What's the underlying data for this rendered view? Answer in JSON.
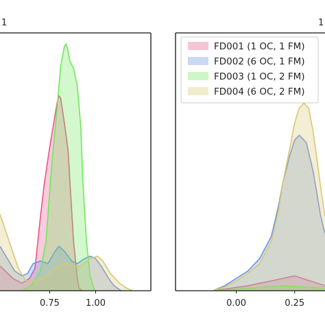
{
  "panel_labels": {
    "left": "1",
    "right": "1"
  },
  "chart_data": [
    {
      "type": "area",
      "xlim": [
        0.48,
        1.3
      ],
      "ylim": [
        0,
        1
      ],
      "x_ticks": [
        0.75,
        1.0
      ],
      "x_tick_labels": [
        "0.75",
        "1.00"
      ],
      "grid": false,
      "legend": null,
      "series": [
        {
          "color": "#e8558a",
          "x": [
            0.48,
            0.55,
            0.6,
            0.64,
            0.67,
            0.7,
            0.72,
            0.75,
            0.77,
            0.79,
            0.8,
            0.81,
            0.83,
            0.85,
            0.86,
            0.88,
            0.9,
            0.91,
            0.93
          ],
          "y": [
            0.1,
            0.05,
            0.03,
            0.05,
            0.09,
            0.3,
            0.43,
            0.58,
            0.67,
            0.76,
            0.79,
            0.78,
            0.68,
            0.57,
            0.44,
            0.2,
            0.05,
            0.01,
            0.0
          ]
        },
        {
          "color": "#6d93e3",
          "x": [
            0.48,
            0.52,
            0.56,
            0.6,
            0.63,
            0.66,
            0.7,
            0.74,
            0.78,
            0.8,
            0.83,
            0.87,
            0.9,
            0.94,
            0.97,
            1.0,
            1.03,
            1.07,
            1.1,
            1.14
          ],
          "y": [
            0.18,
            0.13,
            0.08,
            0.06,
            0.07,
            0.11,
            0.12,
            0.11,
            0.16,
            0.18,
            0.16,
            0.12,
            0.11,
            0.13,
            0.14,
            0.13,
            0.1,
            0.05,
            0.02,
            0.0
          ]
        },
        {
          "color": "#6ee85a",
          "x": [
            0.6,
            0.65,
            0.7,
            0.73,
            0.76,
            0.79,
            0.81,
            0.83,
            0.84,
            0.85,
            0.86,
            0.88,
            0.9,
            0.92,
            0.93,
            0.95,
            0.97,
            0.99,
            1.0
          ],
          "y": [
            0.0,
            0.02,
            0.08,
            0.2,
            0.5,
            0.74,
            0.91,
            0.99,
            1.0,
            0.97,
            0.93,
            0.9,
            0.83,
            0.66,
            0.45,
            0.2,
            0.06,
            0.01,
            0.0
          ]
        },
        {
          "color": "#d8c870",
          "x": [
            0.48,
            0.53,
            0.58,
            0.62,
            0.67,
            0.72,
            0.76,
            0.8,
            0.84,
            0.88,
            0.92,
            0.97,
            1.01,
            1.04,
            1.08,
            1.13,
            1.17,
            1.2
          ],
          "y": [
            0.31,
            0.2,
            0.09,
            0.04,
            0.04,
            0.05,
            0.08,
            0.1,
            0.11,
            0.1,
            0.1,
            0.13,
            0.14,
            0.12,
            0.07,
            0.03,
            0.01,
            0.0
          ]
        }
      ]
    },
    {
      "type": "area",
      "xlim": [
        -0.26,
        0.38
      ],
      "ylim": [
        0,
        1
      ],
      "x_ticks": [
        0.0,
        0.25
      ],
      "x_tick_labels": [
        "0.00",
        "0.25"
      ],
      "grid": false,
      "legend": "top-right",
      "series": [
        {
          "name": "FD001 (1 OC, 1 FM)",
          "color": "#e8558a",
          "x": [
            -0.1,
            0.05,
            0.15,
            0.25,
            0.38
          ],
          "y": [
            0.0,
            0.02,
            0.04,
            0.06,
            0.02
          ]
        },
        {
          "name": "FD002 (6 OC, 1 FM)",
          "color": "#6d93e3",
          "x": [
            -0.1,
            -0.05,
            0.0,
            0.05,
            0.1,
            0.15,
            0.18,
            0.2,
            0.23,
            0.25,
            0.27,
            0.3,
            0.33,
            0.36,
            0.38
          ],
          "y": [
            0.0,
            0.02,
            0.05,
            0.08,
            0.13,
            0.22,
            0.34,
            0.44,
            0.55,
            0.61,
            0.63,
            0.6,
            0.48,
            0.31,
            0.23
          ]
        },
        {
          "name": "FD003 (1 OC, 2 FM)",
          "color": "#6ee85a",
          "x": [
            -0.1,
            0.05,
            0.2,
            0.38
          ],
          "y": [
            0.0,
            0.01,
            0.02,
            0.01
          ]
        },
        {
          "name": "FD004 (6 OC, 2 FM)",
          "color": "#d8c870",
          "x": [
            -0.1,
            -0.05,
            0.0,
            0.05,
            0.1,
            0.15,
            0.18,
            0.2,
            0.23,
            0.25,
            0.27,
            0.29,
            0.31,
            0.33,
            0.36,
            0.38
          ],
          "y": [
            0.0,
            0.015,
            0.04,
            0.07,
            0.11,
            0.2,
            0.32,
            0.44,
            0.58,
            0.68,
            0.74,
            0.76,
            0.74,
            0.64,
            0.43,
            0.3
          ]
        }
      ]
    }
  ]
}
